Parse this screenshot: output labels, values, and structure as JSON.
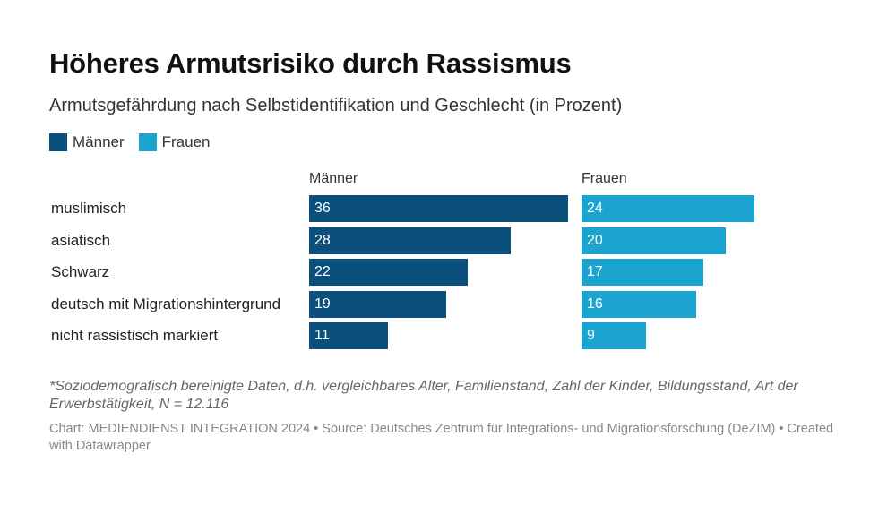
{
  "title": "Höheres Armutsrisiko durch Rassismus",
  "subtitle": "Armutsgefährdung nach Selbstidentifikation und Geschlecht (in Prozent)",
  "legend": [
    {
      "label": "Männer",
      "color": "#0b4f7d"
    },
    {
      "label": "Frauen",
      "color": "#1ca4d0"
    }
  ],
  "chart_data": {
    "type": "bar",
    "orientation": "horizontal",
    "categories": [
      "muslimisch",
      "asiatisch",
      "Schwarz",
      "deutsch mit Migrationshintergrund",
      "nicht rassistisch markiert"
    ],
    "series": [
      {
        "name": "Männer",
        "values": [
          36,
          28,
          22,
          19,
          11
        ],
        "color": "#0b4f7d"
      },
      {
        "name": "Frauen",
        "values": [
          24,
          20,
          17,
          16,
          9
        ],
        "color": "#1ca4d0"
      }
    ],
    "xlim": [
      0,
      36
    ],
    "panel_headers": [
      "Männer",
      "Frauen"
    ]
  },
  "notes": "*Soziodemografisch bereinigte Daten, d.h. vergleichbares Alter, Familienstand, Zahl der Kinder, Bildungsstand, Art der Erwerbstätigkeit, N = 12.116",
  "footer": "Chart: MEDIENDIENST INTEGRATION 2024 • Source: Deutsches Zentrum für Integrations- und Migrationsforschung (DeZIM) • Created with Datawrapper"
}
